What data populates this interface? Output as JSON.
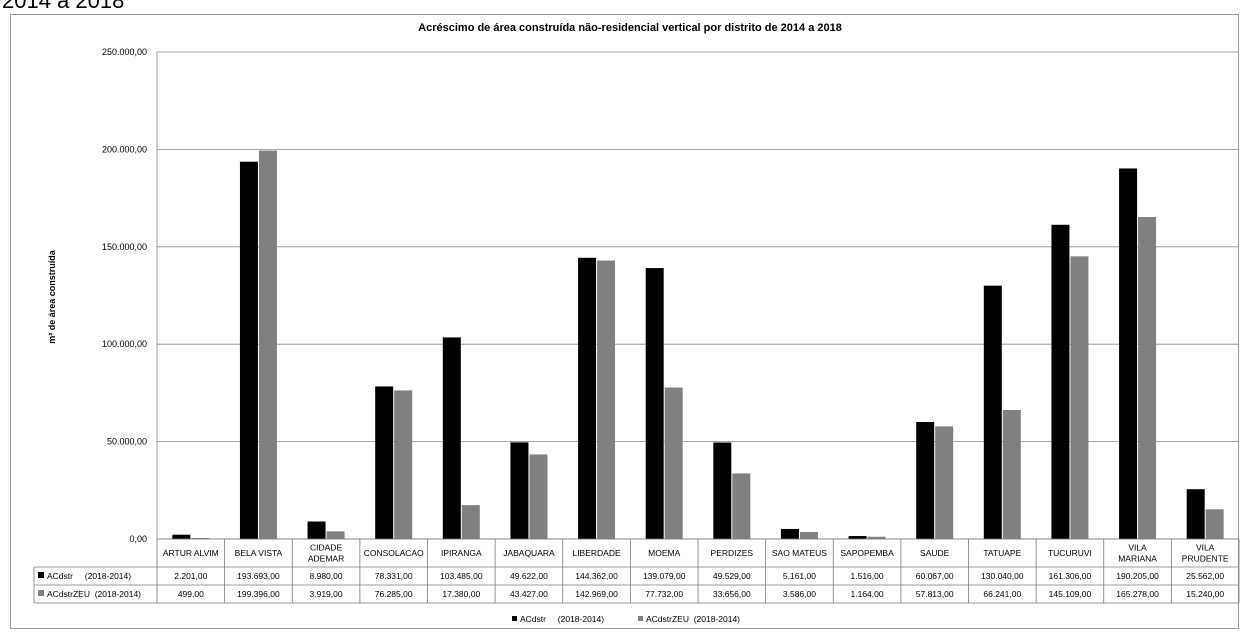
{
  "page": {
    "heading": "2014 a 2018"
  },
  "chart_data": {
    "type": "bar",
    "title": "Acréscimo de área construída não-residencial vertical por distrito de 2014 a 2018",
    "ylabel": "m² de área construída",
    "xlabel": "",
    "ylim": [
      0,
      250000
    ],
    "yticks": [
      0,
      50000,
      100000,
      150000,
      200000,
      250000
    ],
    "ytick_labels": [
      "0,00",
      "50.000,00",
      "100.000,00",
      "150.000,00",
      "200.000,00",
      "250.000,00"
    ],
    "grid": true,
    "legend_position": "bottom",
    "categories": [
      [
        "ARTUR ALVIM"
      ],
      [
        "BELA VISTA"
      ],
      [
        "CIDADE",
        "ADEMAR"
      ],
      [
        "CONSOLACAO"
      ],
      [
        "IPIRANGA"
      ],
      [
        "JABAQUARA"
      ],
      [
        "LIBERDADE"
      ],
      [
        "MOEMA"
      ],
      [
        "PERDIZES"
      ],
      [
        "SAO MATEUS"
      ],
      [
        "SAPOPEMBA"
      ],
      [
        "SAUDE"
      ],
      [
        "TATUAPE"
      ],
      [
        "TUCURUVI"
      ],
      [
        "VILA",
        "MARIANA"
      ],
      [
        "VILA",
        "PRUDENTE"
      ]
    ],
    "series": [
      {
        "name": "ACdstr     (2018-2014)",
        "color": "#000000",
        "values": [
          2201,
          193693,
          8980,
          78331,
          103485,
          49622,
          144362,
          139079,
          49529,
          5161,
          1516,
          60067,
          130040,
          161306,
          190205,
          25562
        ],
        "labels": [
          "2.201,00",
          "193.693,00",
          "8.980,00",
          "78.331,00",
          "103.485,00",
          "49.622,00",
          "144.362,00",
          "139.079,00",
          "49.529,00",
          "5.161,00",
          "1.516,00",
          "60.067,00",
          "130.040,00",
          "161.306,00",
          "190.205,00",
          "25.562,00"
        ]
      },
      {
        "name": "ACdstrZEU  (2018-2014)",
        "color": "#808080",
        "values": [
          499,
          199396,
          3919,
          76285,
          17380,
          43427,
          142969,
          77732,
          33656,
          3586,
          1164,
          57813,
          66241,
          145109,
          165278,
          15240
        ],
        "labels": [
          "499,00",
          "199.396,00",
          "3.919,00",
          "76.285,00",
          "17.380,00",
          "43.427,00",
          "142.969,00",
          "77.732,00",
          "33.656,00",
          "3.586,00",
          "1.164,00",
          "57.813,00",
          "66.241,00",
          "145.109,00",
          "165.278,00",
          "15.240,00"
        ]
      }
    ]
  }
}
